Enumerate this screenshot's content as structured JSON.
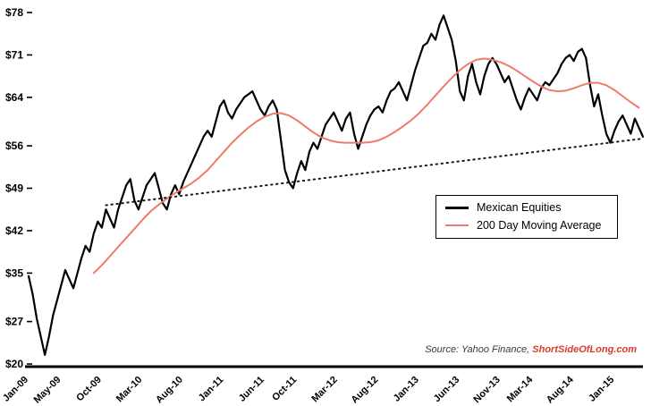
{
  "chart": {
    "source_prefix": "Source: Yahoo Finance, ",
    "source_brand": "ShortSideOfLong.com",
    "colors": {
      "equities": "#000000",
      "moving_average": "#ef7a6d",
      "trendline": "#1a1a1a",
      "axis": "#000000",
      "brand_red": "#d93b2b",
      "background": "#ffffff"
    }
  },
  "legend": {
    "items": [
      {
        "label": "Mexican Equities",
        "color": "#000000"
      },
      {
        "label": "200 Day Moving Average",
        "color": "#ef7a6d"
      }
    ]
  },
  "chart_data": {
    "type": "line",
    "ylim": [
      20,
      78
    ],
    "x_range_months": [
      0,
      75.5
    ],
    "grid": false,
    "legend_position": "center-right",
    "y_ticks": [
      20,
      27,
      35,
      42,
      49,
      56,
      64,
      71,
      78
    ],
    "y_tick_labels": [
      "$20",
      "$27",
      "$35",
      "$42",
      "$49",
      "$56",
      "$64",
      "$71",
      "$78"
    ],
    "x_ticks": [
      {
        "label": "Jan-09",
        "month": 0
      },
      {
        "label": "May-09",
        "month": 4
      },
      {
        "label": "Oct-09",
        "month": 9
      },
      {
        "label": "Mar-10",
        "month": 14
      },
      {
        "label": "Aug-10",
        "month": 19
      },
      {
        "label": "Jan-11",
        "month": 24
      },
      {
        "label": "Jun-11",
        "month": 29
      },
      {
        "label": "Oct-11",
        "month": 33
      },
      {
        "label": "Mar-12",
        "month": 38
      },
      {
        "label": "Aug-12",
        "month": 43
      },
      {
        "label": "Jan-13",
        "month": 48
      },
      {
        "label": "Jun-13",
        "month": 53
      },
      {
        "label": "Nov-13",
        "month": 58
      },
      {
        "label": "Mar-14",
        "month": 62
      },
      {
        "label": "Aug-14",
        "month": 67
      },
      {
        "label": "Jan-15",
        "month": 72
      }
    ],
    "series": [
      {
        "id": "equities-line",
        "name": "Mexican Equities",
        "color": "#000000",
        "width": 2.2,
        "start_month": 0,
        "points_per_month": 2,
        "values": [
          34.5,
          31.5,
          27.5,
          24.5,
          21.5,
          24.5,
          28,
          30.5,
          33,
          35.5,
          34,
          32.5,
          35,
          37.5,
          39.5,
          38.5,
          41.5,
          43.5,
          42.5,
          45.5,
          44,
          42.5,
          45.5,
          47.5,
          49.5,
          50.5,
          47,
          45.5,
          47.5,
          49.5,
          50.5,
          51.5,
          49,
          46.5,
          45.5,
          48,
          49.5,
          48,
          50,
          51.5,
          53,
          54.5,
          56,
          57.5,
          58.5,
          57.5,
          60,
          62.5,
          63.5,
          61.5,
          60.5,
          62,
          63,
          64,
          64.5,
          65,
          63.5,
          62,
          61,
          62.5,
          63.5,
          62,
          57,
          52,
          50,
          49,
          51.5,
          53.5,
          52,
          55,
          56.5,
          55.5,
          57.5,
          59.5,
          60.5,
          61.5,
          60,
          58.5,
          60.5,
          61.5,
          58,
          55.5,
          57.5,
          59.5,
          61,
          62,
          62.5,
          61.5,
          63.5,
          65,
          65.5,
          66.5,
          65,
          63.5,
          66,
          68.5,
          70.5,
          72.5,
          73,
          74.5,
          73.5,
          76,
          77.5,
          75.5,
          73.5,
          70,
          65,
          63.5,
          67.5,
          69.5,
          66.5,
          64.5,
          67.5,
          69.5,
          70.5,
          69.5,
          68,
          66.5,
          67.5,
          65.5,
          63.5,
          62,
          64,
          65.5,
          64.5,
          63.5,
          65.5,
          66.5,
          66,
          67,
          68,
          69.5,
          70.5,
          71,
          70,
          71.5,
          72,
          70.5,
          66,
          62.5,
          64.5,
          61,
          58,
          56.5,
          58.5,
          60,
          61,
          59.5,
          58,
          60.5,
          59,
          57.5
        ]
      },
      {
        "id": "moving-average-line",
        "name": "200 Day Moving Average",
        "color": "#ef7a6d",
        "width": 2,
        "start_month": 8,
        "points_per_month": 1,
        "values": [
          35,
          36.3,
          37.8,
          39.3,
          40.8,
          42.3,
          43.8,
          45.2,
          46.3,
          47.3,
          48.2,
          49,
          49.8,
          50.8,
          52,
          53.5,
          55,
          56.5,
          57.8,
          59,
          60,
          60.8,
          61.3,
          61.4,
          61,
          60.2,
          59.2,
          58.2,
          57.4,
          56.9,
          56.6,
          56.5,
          56.5,
          56.5,
          56.6,
          56.9,
          57.5,
          58.3,
          59.2,
          60.2,
          61.4,
          62.8,
          64.3,
          65.8,
          67.2,
          68.5,
          69.5,
          70.2,
          70.4,
          70.2,
          69.8,
          69.2,
          68.4,
          67.5,
          66.6,
          65.8,
          65.2,
          65,
          65.1,
          65.5,
          66,
          66.4,
          66.4,
          66,
          65.2,
          64.2,
          63.2,
          62.3
        ]
      },
      {
        "id": "trendline",
        "name": "Rising support trendline",
        "color": "#1a1a1a",
        "width": 2,
        "dashed": true,
        "x_months": [
          9.5,
          75.5
        ],
        "values": [
          46.2,
          57.2
        ]
      }
    ]
  }
}
